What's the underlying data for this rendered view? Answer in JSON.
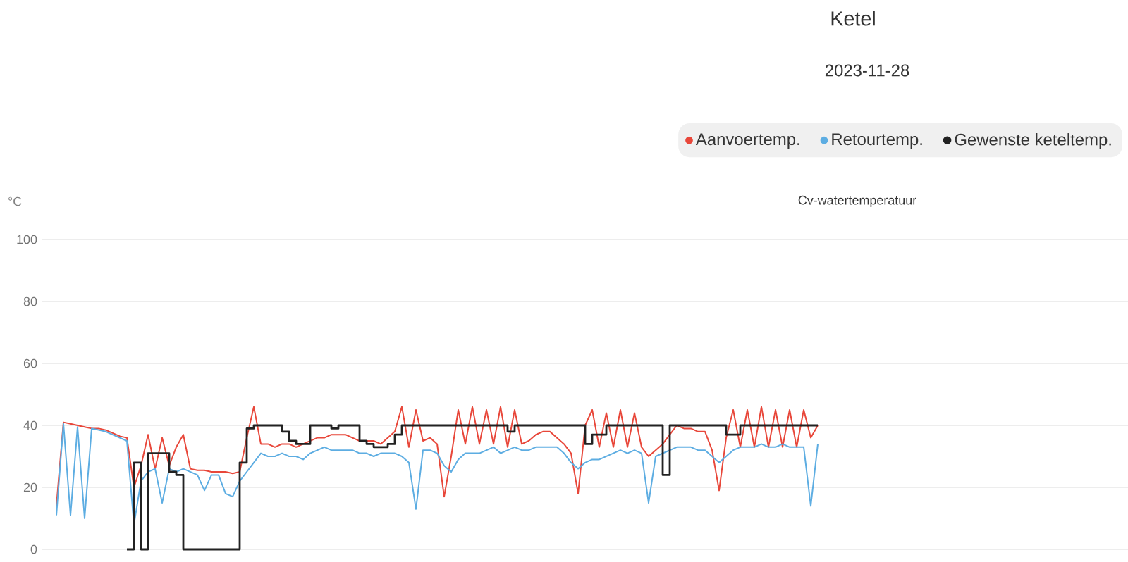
{
  "chart_data": {
    "type": "line",
    "title": "Cv-watertemperatuur",
    "subtitle": "2023-11-28",
    "ylabel": "°C",
    "annotations": [
      "Ketel"
    ],
    "categories": [
      null,
      null,
      null,
      null,
      null,
      null,
      null,
      null,
      null,
      null,
      null,
      null,
      null,
      null,
      null,
      null,
      null,
      null,
      null,
      null,
      null,
      null,
      null,
      null,
      null,
      null,
      null,
      null,
      null,
      null,
      null,
      null,
      null,
      null,
      null,
      null,
      null,
      null,
      null,
      null,
      null,
      null,
      null,
      null,
      null,
      null,
      null,
      null,
      null,
      null,
      null,
      null,
      null,
      null,
      null,
      null,
      null,
      null,
      null,
      null,
      null,
      null,
      null,
      null,
      null,
      null,
      null,
      null,
      null,
      null,
      null,
      null,
      null,
      null,
      null,
      null,
      null,
      null,
      null,
      null,
      null,
      null,
      null,
      null,
      null,
      null,
      null,
      null,
      null,
      null,
      null,
      null,
      null,
      null,
      null,
      null,
      null,
      null,
      null,
      null,
      null,
      null,
      null,
      null,
      null,
      null,
      null,
      null,
      null,
      null,
      null,
      null,
      null,
      null,
      null,
      null,
      null,
      null,
      null,
      null,
      null,
      null,
      null,
      null,
      null,
      null,
      null,
      null,
      null,
      null,
      null,
      null,
      null,
      null,
      null,
      null,
      null,
      null,
      null,
      null,
      null,
      null,
      null,
      null,
      null,
      null,
      null,
      null,
      null,
      null,
      null,
      null,
      null,
      null
    ],
    "series": [
      {
        "name": "Aanvoertemp.",
        "color": "#e8473a",
        "values": [
          null,
          14,
          41,
          40.5,
          40,
          39.5,
          39,
          39,
          38.5,
          37.5,
          36.5,
          36,
          20,
          27,
          37,
          26,
          36,
          27,
          33,
          37,
          26,
          25.5,
          25.5,
          25,
          25,
          25,
          24.5,
          25,
          36,
          46,
          34,
          34,
          33,
          34,
          34,
          33,
          34,
          35,
          36,
          36,
          37,
          37,
          37,
          36,
          35,
          35,
          35,
          34,
          36,
          38,
          46,
          33,
          45,
          35,
          36,
          34,
          17,
          30,
          45,
          34,
          46,
          34,
          45,
          34,
          46,
          33,
          45,
          34,
          35,
          37,
          38,
          38,
          36,
          34,
          31,
          18,
          40,
          45,
          33,
          44,
          33,
          45,
          33,
          44,
          33,
          30,
          32,
          34,
          37,
          40,
          39,
          39,
          38,
          38,
          32,
          19,
          36,
          45,
          33,
          45,
          33,
          46,
          33,
          45,
          33,
          45,
          33,
          45,
          36,
          40,
          null,
          null,
          null,
          null,
          null,
          null,
          null,
          null,
          null,
          null,
          null,
          null,
          null,
          null,
          null,
          null,
          null,
          null,
          null,
          null,
          null,
          null,
          null,
          null,
          null,
          null,
          null,
          null,
          null,
          null,
          null,
          null,
          null,
          null,
          null,
          null,
          null,
          null,
          null,
          null,
          null,
          null,
          null,
          null
        ]
      },
      {
        "name": "Retourtemp.",
        "color": "#5dade2",
        "values": [
          null,
          11,
          40.5,
          11,
          39.5,
          10,
          39,
          38.5,
          38,
          37,
          36,
          35,
          8,
          22,
          25,
          26,
          15,
          26,
          25,
          26,
          25,
          24,
          19,
          24,
          24,
          18,
          17,
          22,
          25,
          28,
          31,
          30,
          30,
          31,
          30,
          30,
          29,
          31,
          32,
          33,
          32,
          32,
          32,
          32,
          31,
          31,
          30,
          31,
          31,
          31,
          30,
          28,
          13,
          32,
          32,
          31,
          27,
          25,
          29,
          31,
          31,
          31,
          32,
          33,
          31,
          32,
          33,
          32,
          32,
          33,
          33,
          33,
          33,
          31,
          28,
          26,
          28,
          29,
          29,
          30,
          31,
          32,
          31,
          32,
          31,
          15,
          30,
          31,
          32,
          33,
          33,
          33,
          32,
          32,
          30,
          28,
          30,
          32,
          33,
          33,
          33,
          34,
          33,
          33,
          34,
          33,
          33,
          33,
          14,
          34,
          null,
          null,
          null,
          null,
          null,
          null,
          null,
          null,
          null,
          null,
          null,
          null,
          null,
          null,
          null,
          null,
          null,
          null,
          null,
          null,
          null,
          null,
          null,
          null,
          null,
          null,
          null,
          null,
          null,
          null,
          null,
          null,
          null,
          null,
          null,
          null,
          null,
          null,
          null,
          null,
          null,
          null,
          null,
          null
        ]
      },
      {
        "name": "Gewenste keteltemp.",
        "color": "#222222",
        "type": "step",
        "values": [
          null,
          null,
          null,
          null,
          null,
          null,
          null,
          null,
          null,
          null,
          null,
          0,
          28,
          0,
          31,
          31,
          31,
          25,
          24,
          0,
          0,
          0,
          0,
          0,
          0,
          0,
          0,
          28,
          39,
          40,
          40,
          40,
          40,
          38,
          35,
          34,
          34,
          40,
          40,
          40,
          39,
          40,
          40,
          40,
          35,
          34,
          33,
          33,
          34,
          37,
          40,
          40,
          40,
          40,
          40,
          40,
          40,
          40,
          40,
          40,
          40,
          40,
          40,
          40,
          40,
          38,
          40,
          40,
          40,
          40,
          40,
          40,
          40,
          40,
          40,
          40,
          34,
          37,
          37,
          40,
          40,
          40,
          40,
          40,
          40,
          40,
          40,
          24,
          40,
          40,
          40,
          40,
          40,
          40,
          40,
          40,
          37,
          37,
          40,
          40,
          40,
          40,
          40,
          40,
          40,
          40,
          40,
          40,
          40,
          40,
          null,
          null,
          null,
          null,
          null,
          null,
          null,
          null,
          null,
          null,
          null,
          null,
          null,
          null,
          null,
          null,
          null,
          null,
          null,
          null,
          null,
          null,
          null,
          null,
          null,
          null,
          null,
          null,
          null,
          null,
          null,
          null,
          null,
          null,
          null,
          null,
          null,
          null,
          null,
          null,
          null,
          null,
          null,
          null
        ]
      }
    ],
    "ylim": [
      0,
      100
    ],
    "yticks": [
      0,
      20,
      40,
      60,
      80,
      100
    ],
    "grid": "y",
    "legend": "top right"
  }
}
